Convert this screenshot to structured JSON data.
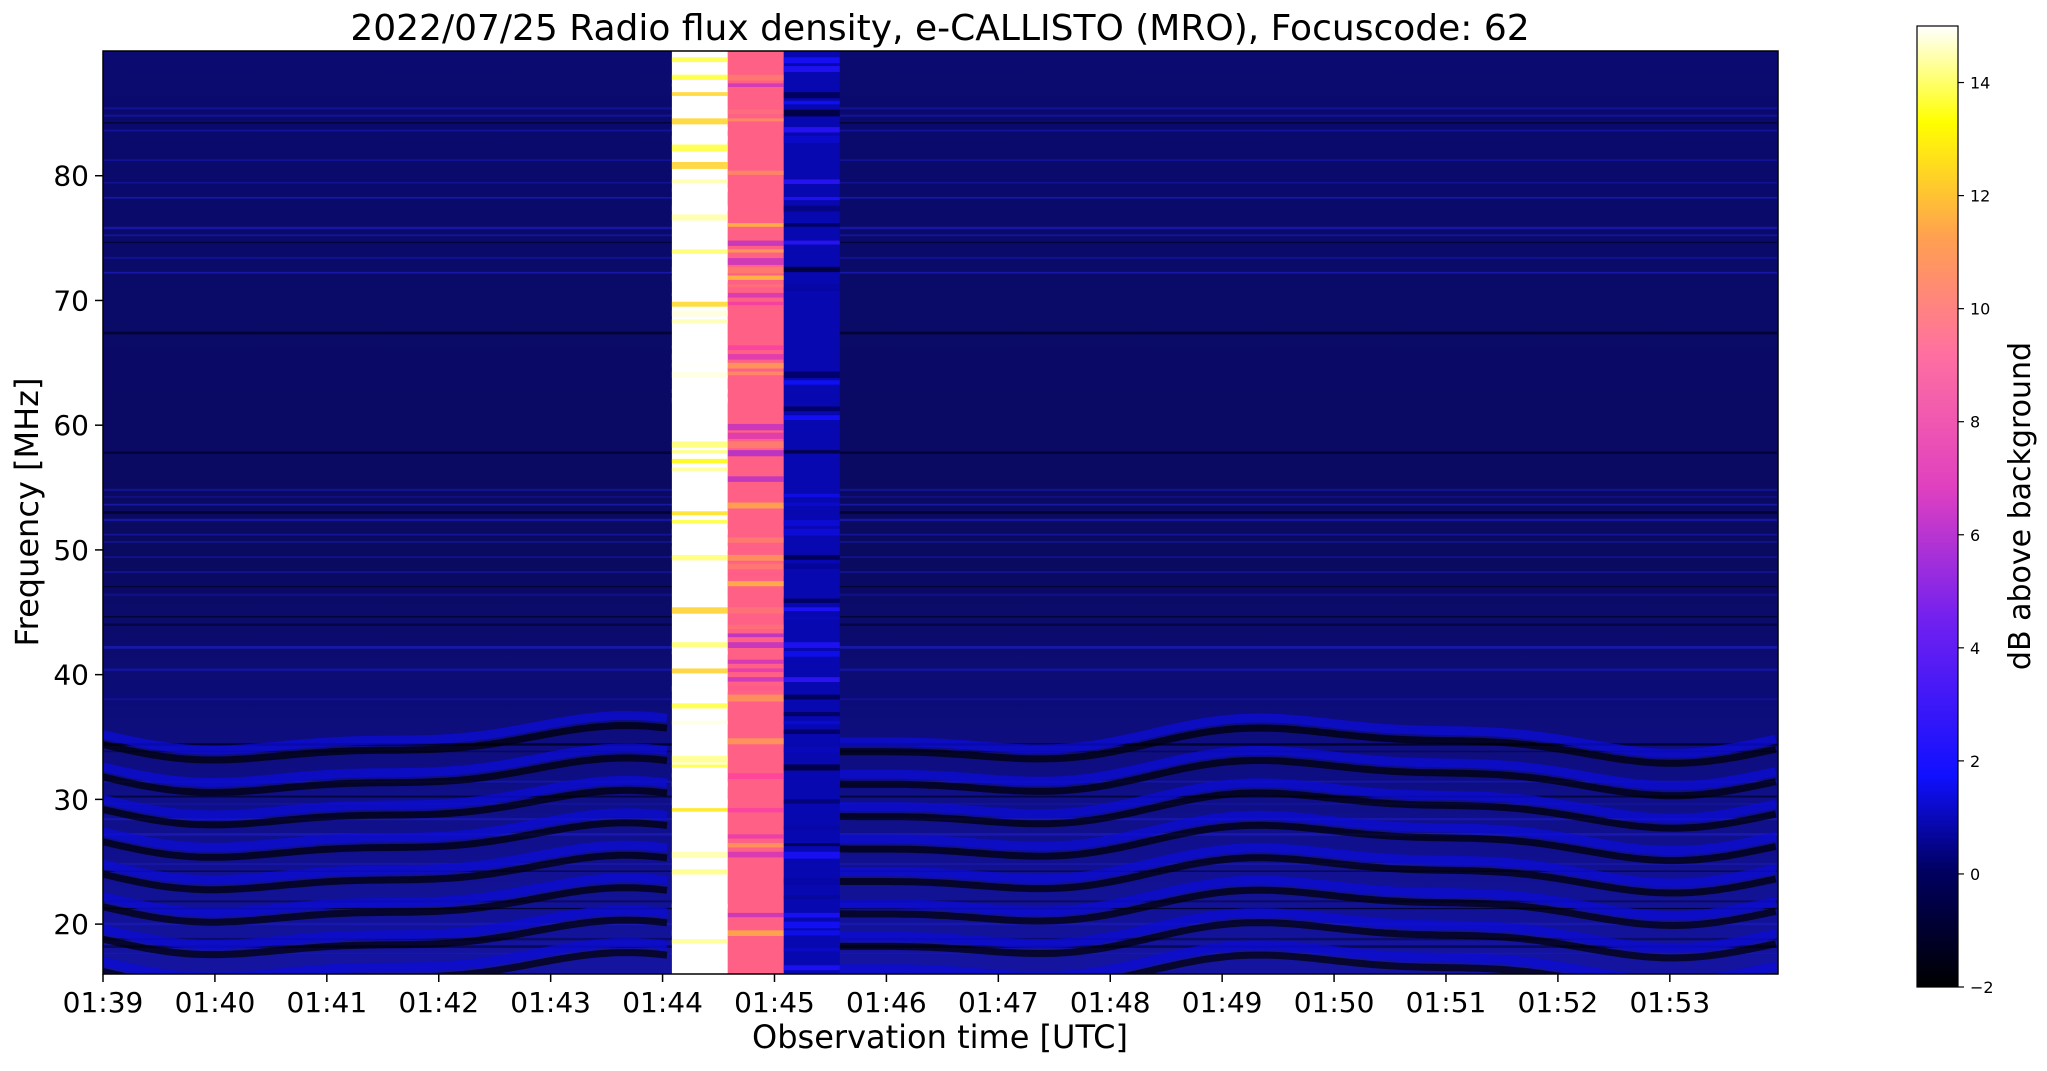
{
  "chart_data": {
    "type": "heatmap",
    "title": "2022/07/25  Radio flux density, e-CALLISTO (MRO), Focuscode: 62",
    "xlabel": "Observation time [UTC]",
    "ylabel": "Frequency [MHz]",
    "xlim": [
      "01:39",
      "01:53:58"
    ],
    "ylim": [
      16,
      90
    ],
    "x_ticks": [
      "01:39",
      "01:40",
      "01:41",
      "01:42",
      "01:43",
      "01:44",
      "01:45",
      "01:46",
      "01:47",
      "01:48",
      "01:49",
      "01:50",
      "01:51",
      "01:52",
      "01:53"
    ],
    "y_ticks": [
      20,
      30,
      40,
      50,
      60,
      70,
      80
    ],
    "colorbar": {
      "label": "dB above background",
      "range": [
        -2,
        15
      ],
      "ticks": [
        -2,
        0,
        2,
        4,
        6,
        8,
        10,
        12,
        14
      ],
      "colormap": [
        "#000000",
        "#1010ff",
        "#a020f0",
        "#ff40a0",
        "#ffa050",
        "#ffff00",
        "#ffffff"
      ]
    },
    "background_level_db": 0,
    "interference_fringes": {
      "frequency_range_mhz": [
        16,
        36
      ],
      "level_db": 1.5
    },
    "calibration_blocks": [
      {
        "time_start": "01:44:05",
        "time_end": "01:44:35",
        "level_db": 15
      },
      {
        "time_start": "01:44:35",
        "time_end": "01:45:05",
        "level_db": 9
      },
      {
        "time_start": "01:45:05",
        "time_end": "01:45:35",
        "level_db": 1
      }
    ],
    "grid": false
  }
}
